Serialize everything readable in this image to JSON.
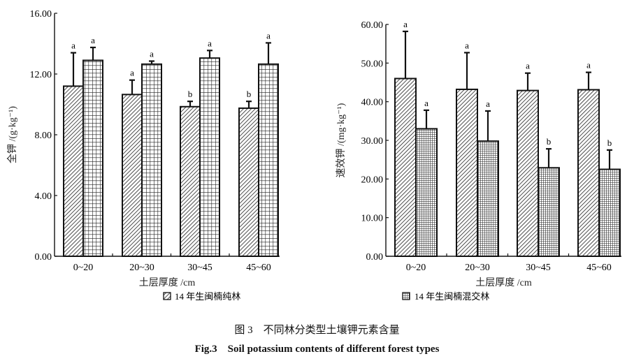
{
  "chart_data": [
    {
      "type": "bar",
      "ylabel": "全钾 /(g·kg⁻¹)",
      "xlabel": "土层厚度 /cm",
      "categories": [
        "0~20",
        "20~30",
        "30~45",
        "45~60"
      ],
      "ylim": [
        0,
        16
      ],
      "yticks": [
        "0.00",
        "4.00",
        "8.00",
        "12.00",
        "16.00"
      ],
      "series": [
        {
          "name": "14 年生闽楠纯林",
          "pattern": "diagonal-hatch",
          "values": [
            11.2,
            10.65,
            9.85,
            9.75
          ],
          "error_upper": [
            13.4,
            11.6,
            10.2,
            10.2
          ],
          "letters": [
            "a",
            "a",
            "b",
            "b"
          ]
        },
        {
          "name": "14 年生闽楠混交林",
          "pattern": "grid",
          "values": [
            12.9,
            12.65,
            13.05,
            12.65
          ],
          "error_upper": [
            13.75,
            12.85,
            13.55,
            14.05
          ],
          "letters": [
            "a",
            "a",
            "a",
            "a"
          ]
        }
      ]
    },
    {
      "type": "bar",
      "ylabel": "速效钾 /(mg·kg⁻¹)",
      "xlabel": "土层厚度 /cm",
      "categories": [
        "0~20",
        "20~30",
        "30~45",
        "45~60"
      ],
      "ylim": [
        0,
        60
      ],
      "yticks": [
        "0.00",
        "10.00",
        "20.00",
        "30.00",
        "40.00",
        "50.00",
        "60.00"
      ],
      "series": [
        {
          "name": "14 年生闽楠纯林",
          "pattern": "diagonal-hatch",
          "values": [
            46.0,
            43.2,
            42.9,
            43.1
          ],
          "error_upper": [
            58.2,
            52.7,
            47.4,
            47.6
          ],
          "letters": [
            "a",
            "a",
            "a",
            "a"
          ]
        },
        {
          "name": "14 年生闽楠混交林",
          "pattern": "fine-grid",
          "values": [
            33.0,
            29.8,
            22.9,
            22.5
          ],
          "error_upper": [
            37.8,
            37.6,
            27.8,
            27.5
          ],
          "letters": [
            "a",
            "a",
            "b",
            "b"
          ]
        }
      ]
    }
  ],
  "legend": {
    "items": [
      "14 年生闽楠纯林",
      "14 年生闽楠混交林"
    ],
    "placement": "bottom"
  },
  "caption": {
    "cn": "图 3　不同林分类型土壤钾元素含量",
    "en": "Fig.3　Soil potassium contents of different forest types"
  }
}
